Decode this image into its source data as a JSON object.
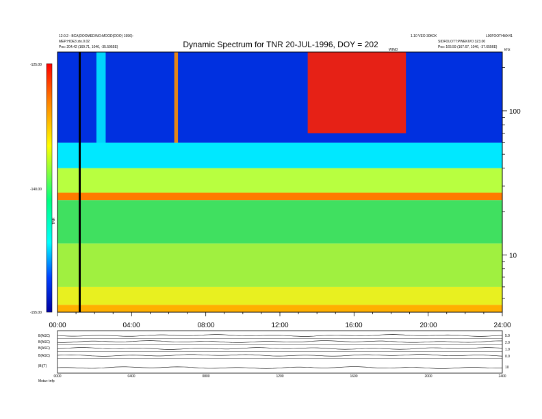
{
  "chart_data": {
    "type": "heatmap",
    "title": "Dynamic Spectrum for TNR 20-JUL-1996, DOY = 202",
    "header_left": [
      "12:0.2 - BCA(DOOMED/NO:MOOD(DOO) 1996)-",
      "MEP:HOE3 zto.0.02",
      "Pos:  204.42 (169.71, 1046, -35.5955E)"
    ],
    "header_right": [
      "1.10 VEO 30K0X",
      "SIDFOLOTT:PWEKIVO 3Z3.00",
      "Pos:  165.59 (167.67, 1046, -37.6556E)",
      "L00FOOTHMX41"
    ],
    "header_center_small": "WIND",
    "colorbar": {
      "label": "TNR",
      "ticks": [
        "-125.00",
        "-140.00",
        "-155.00"
      ],
      "min": -155,
      "max": -125,
      "colors": [
        "#0000a0",
        "#0040ff",
        "#00ffff",
        "#00ff80",
        "#ffff00",
        "#ff8000",
        "#ff0000"
      ]
    },
    "x": {
      "ticks": [
        "00:00",
        "04:00",
        "08:00",
        "12:00",
        "16:00",
        "20:00",
        "24:00"
      ],
      "range": [
        0,
        24
      ]
    },
    "y": {
      "scale": "log",
      "unit_label": "kHz",
      "ticks": [
        "100",
        "10"
      ],
      "range": [
        4,
        256
      ]
    },
    "marker_hour": 1.2,
    "bands": [
      {
        "f_hi": 256,
        "f_lo": 60,
        "color": "#0030e0"
      },
      {
        "f_hi": 60,
        "f_lo": 40,
        "color": "#00e8ff"
      },
      {
        "f_hi": 40,
        "f_lo": 27,
        "color": "#b8ff40"
      },
      {
        "f_hi": 27,
        "f_lo": 24,
        "color": "#ff7a00"
      },
      {
        "f_hi": 24,
        "f_lo": 12,
        "color": "#40e060"
      },
      {
        "f_hi": 12,
        "f_lo": 6,
        "color": "#a0f040"
      },
      {
        "f_hi": 6,
        "f_lo": 4.5,
        "color": "#e8f020"
      },
      {
        "f_hi": 4.5,
        "f_lo": 4,
        "color": "#ffb000"
      }
    ],
    "bursts": [
      {
        "t0": 13.5,
        "t1": 18.8,
        "f_lo": 70,
        "color": "#ff2000"
      },
      {
        "t0": 2.1,
        "t1": 2.6,
        "f_lo": 50,
        "color": "#00e8ff"
      },
      {
        "t0": 6.3,
        "t1": 6.5,
        "f_lo": 60,
        "color": "#ff9000"
      }
    ],
    "panels": {
      "labels": [
        "B(ASC)",
        "B(ASC)",
        "B(ASC)",
        "B(ASC)",
        "|B|(T)"
      ],
      "right_ticks": [
        "5.0",
        "2.0",
        "1.0",
        "0.0",
        "10"
      ],
      "x_ticks": [
        "0000",
        "0400",
        "0800",
        "1200",
        "1600",
        "2000",
        "2400"
      ],
      "footer": "Mstar:   tnfp"
    }
  }
}
